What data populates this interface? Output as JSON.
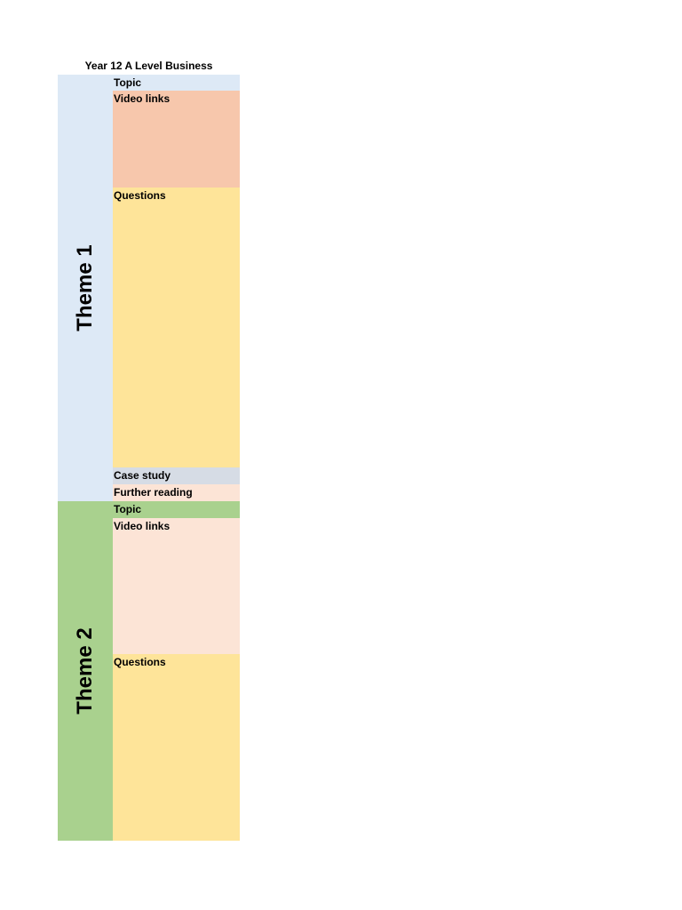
{
  "title": "Year 12 A Level Business",
  "themes": [
    {
      "label": "Theme 1",
      "rows": [
        "Topic",
        "Video links",
        "Questions",
        "Case study",
        "Further reading"
      ]
    },
    {
      "label": "Theme 2",
      "rows": [
        "Topic",
        "Video links",
        "Questions"
      ]
    }
  ]
}
